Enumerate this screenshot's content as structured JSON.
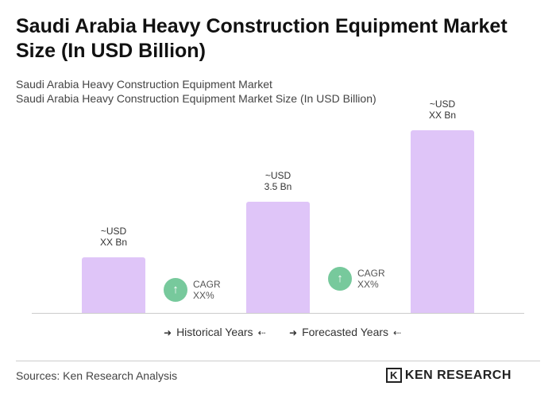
{
  "chart_data": {
    "type": "bar",
    "title": "Saudi Arabia Heavy Construction Equipment Market Size (In USD Billion)",
    "subtitle": [
      "Saudi Arabia Heavy Construction Equipment Market",
      "Saudi Arabia Heavy Construction Equipment Market Size (In USD Billion)"
    ],
    "categories": [
      null,
      null,
      null
    ],
    "values": [
      1.75,
      3.5,
      5.75
    ],
    "value_labels": [
      "~USD\nXX Bn",
      "~USD\n3.5 Bn",
      "~USD\nXX Bn"
    ],
    "color": "#dfc5f8",
    "annotations": [
      {
        "text": "CAGR\nXX%",
        "color": "#77c99c"
      },
      {
        "text": "CAGR\nXX%",
        "color": "#77c99c"
      }
    ],
    "legend": [
      "Historical Years",
      "Forecasted Years"
    ]
  },
  "footer": {
    "source": "Sources: Ken Research Analysis",
    "logo": "KEN RESEARCH"
  }
}
